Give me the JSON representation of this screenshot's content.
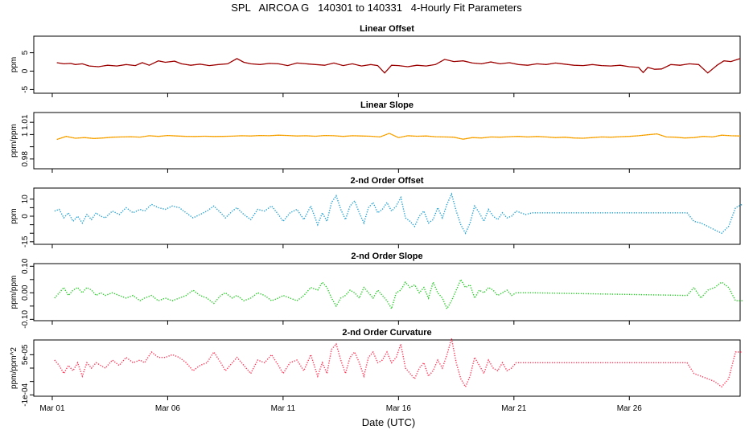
{
  "figure": {
    "title": "SPL   AIRCOA G   140301 to 140331   4-Hourly Fit Parameters",
    "xlabel": "Date (UTC)"
  },
  "chart_data": [
    {
      "type": "line",
      "title": "Linear Offset",
      "ylabel": "ppm",
      "color": "#aa0000",
      "dotted": false,
      "ylim": [
        -6,
        9.5
      ],
      "yticks": [
        -5,
        0,
        5
      ],
      "ytick_labels": [
        "-5",
        "0",
        "5"
      ],
      "x_days": [
        0.2,
        0.5,
        0.8,
        1.0,
        1.3,
        1.6,
        2.0,
        2.4,
        2.8,
        3.2,
        3.6,
        3.9,
        4.2,
        4.6,
        4.9,
        5.3,
        5.6,
        6.0,
        6.4,
        6.8,
        7.2,
        7.6,
        8.0,
        8.3,
        8.6,
        9.0,
        9.4,
        9.8,
        10.2,
        10.6,
        11.0,
        11.4,
        11.8,
        12.2,
        12.6,
        13.0,
        13.4,
        13.8,
        14.1,
        14.4,
        14.7,
        15.0,
        15.4,
        15.8,
        16.2,
        16.6,
        17.0,
        17.4,
        17.8,
        18.2,
        18.6,
        19.0,
        19.4,
        19.8,
        20.2,
        20.6,
        21.0,
        21.4,
        21.8,
        22.2,
        22.6,
        23.0,
        23.4,
        23.8,
        24.2,
        24.6,
        25.0,
        25.4,
        25.6,
        25.8,
        26.1,
        26.4,
        26.8,
        27.2,
        27.6,
        28.0,
        28.4,
        28.8,
        29.1,
        29.4,
        29.8
      ],
      "values": [
        2.3,
        2.0,
        2.1,
        1.8,
        2.0,
        1.4,
        1.2,
        1.6,
        1.4,
        1.8,
        1.5,
        2.3,
        1.6,
        2.8,
        2.4,
        2.7,
        2.0,
        1.6,
        1.9,
        1.5,
        1.8,
        2.0,
        3.4,
        2.4,
        2.0,
        1.8,
        2.1,
        2.0,
        1.5,
        2.2,
        2.0,
        1.8,
        1.6,
        2.2,
        1.5,
        2.0,
        1.4,
        1.8,
        1.5,
        -0.5,
        1.6,
        1.5,
        1.2,
        1.6,
        1.4,
        1.8,
        3.2,
        2.6,
        2.8,
        2.2,
        2.0,
        2.5,
        2.0,
        2.3,
        1.8,
        1.6,
        2.0,
        1.8,
        2.2,
        1.9,
        1.6,
        1.5,
        1.8,
        1.5,
        1.4,
        1.6,
        1.2,
        1.0,
        -0.4,
        1.0,
        0.5,
        0.6,
        1.8,
        1.6,
        2.0,
        1.8,
        -0.5,
        1.6,
        2.8,
        2.6,
        3.4
      ]
    },
    {
      "type": "line",
      "title": "Linear Slope",
      "ylabel": "ppm/ppm",
      "color": "#ffaa00",
      "dotted": false,
      "ylim": [
        0.972,
        1.018
      ],
      "yticks": [
        0.98,
        0.99,
        1.0,
        1.01
      ],
      "ytick_labels": [
        "0.98",
        "",
        "1",
        "1.01"
      ],
      "x_days": [
        0.2,
        0.6,
        1.0,
        1.4,
        1.8,
        2.2,
        2.6,
        3.0,
        3.4,
        3.8,
        4.2,
        4.6,
        5.0,
        5.4,
        5.8,
        6.2,
        6.6,
        7.0,
        7.4,
        7.8,
        8.2,
        8.6,
        9.0,
        9.4,
        9.8,
        10.2,
        10.6,
        11.0,
        11.4,
        11.8,
        12.2,
        12.6,
        13.0,
        13.4,
        13.8,
        14.2,
        14.6,
        15.0,
        15.4,
        15.8,
        16.2,
        16.6,
        17.0,
        17.4,
        17.8,
        18.2,
        18.6,
        19.0,
        19.4,
        19.8,
        20.2,
        20.6,
        21.0,
        21.4,
        21.8,
        22.2,
        22.6,
        23.0,
        23.4,
        23.8,
        24.2,
        24.6,
        25.0,
        25.4,
        25.8,
        26.2,
        26.6,
        27.0,
        27.4,
        27.8,
        28.2,
        28.6,
        29.0,
        29.4,
        29.8
      ],
      "values": [
        0.996,
        0.9985,
        0.997,
        0.9975,
        0.9968,
        0.9972,
        0.9978,
        0.998,
        0.9982,
        0.9979,
        0.999,
        0.9985,
        0.9992,
        0.9988,
        0.9985,
        0.9984,
        0.9986,
        0.9984,
        0.9985,
        0.9987,
        0.999,
        0.9988,
        0.9992,
        0.999,
        0.9995,
        0.9992,
        0.9988,
        0.999,
        0.9986,
        0.9992,
        0.999,
        0.9985,
        0.999,
        0.9988,
        0.9986,
        0.998,
        1.001,
        0.9975,
        0.999,
        0.9986,
        0.9988,
        0.9982,
        0.998,
        0.9978,
        0.9962,
        0.9975,
        0.9972,
        0.998,
        0.9978,
        0.9982,
        0.9985,
        0.998,
        0.9984,
        0.998,
        0.9975,
        0.9978,
        0.9972,
        0.997,
        0.9975,
        0.998,
        0.9978,
        0.9982,
        0.9985,
        0.999,
        0.9998,
        1.0005,
        0.998,
        0.9978,
        0.9972,
        0.9975,
        0.9985,
        0.998,
        0.9995,
        0.999,
        0.9988
      ]
    },
    {
      "type": "line",
      "title": "2-nd Order Offset",
      "ylabel": "ppm",
      "color": "#1e9fd2",
      "dotted": true,
      "ylim": [
        -16.5,
        16.5
      ],
      "yticks": [
        -15,
        -10,
        -5,
        0,
        5,
        10
      ],
      "ytick_labels": [
        "-15",
        "",
        "",
        "0",
        "",
        "10"
      ],
      "x_days": [
        0.1,
        0.3,
        0.5,
        0.7,
        0.9,
        1.1,
        1.3,
        1.5,
        1.7,
        1.9,
        2.1,
        2.3,
        2.6,
        2.9,
        3.2,
        3.5,
        3.8,
        4.0,
        4.3,
        4.6,
        4.9,
        5.2,
        5.5,
        5.8,
        6.1,
        6.4,
        6.7,
        7.0,
        7.3,
        7.5,
        7.8,
        8.0,
        8.3,
        8.6,
        8.9,
        9.2,
        9.5,
        9.8,
        10.0,
        10.3,
        10.6,
        10.9,
        11.2,
        11.5,
        11.7,
        11.9,
        12.1,
        12.3,
        12.5,
        12.7,
        12.9,
        13.1,
        13.3,
        13.5,
        13.7,
        13.9,
        14.1,
        14.3,
        14.5,
        14.7,
        14.9,
        15.1,
        15.3,
        15.5,
        15.7,
        15.9,
        16.1,
        16.3,
        16.5,
        16.7,
        16.9,
        17.1,
        17.3,
        17.5,
        17.7,
        17.9,
        18.1,
        18.3,
        18.5,
        18.7,
        18.9,
        19.1,
        19.3,
        19.5,
        19.7,
        19.9,
        20.1,
        20.3,
        20.5,
        20.8,
        27.5,
        27.8,
        28.1,
        28.4,
        28.7,
        29.0,
        29.3,
        29.6,
        29.9
      ],
      "values": [
        3,
        4,
        -1,
        2,
        -3,
        0,
        -4,
        1,
        -2,
        2,
        0,
        -1,
        3,
        1,
        5,
        2,
        4,
        3,
        7,
        5,
        4,
        6,
        5,
        2,
        -1,
        1,
        3,
        6,
        2,
        -1,
        3,
        5,
        1,
        -2,
        4,
        3,
        6,
        1,
        -3,
        2,
        4,
        -2,
        6,
        -5,
        2,
        -3,
        8,
        12,
        4,
        -2,
        6,
        9,
        2,
        -4,
        5,
        8,
        2,
        4,
        8,
        3,
        6,
        11,
        -1,
        -3,
        -6,
        0,
        3,
        -4,
        -2,
        5,
        -1,
        7,
        13,
        3,
        -5,
        -10,
        -4,
        6,
        2,
        -3,
        4,
        0,
        -2,
        2,
        -1,
        0,
        3,
        2,
        1,
        2,
        2,
        -3,
        -4,
        -6,
        -8,
        -10,
        -6,
        5,
        7
      ]
    },
    {
      "type": "line",
      "title": "2-nd Order Slope",
      "ylabel": "ppm/ppm",
      "color": "#22cc22",
      "dotted": true,
      "ylim": [
        -0.105,
        0.11
      ],
      "yticks": [
        -0.1,
        -0.05,
        0.0,
        0.05,
        0.1
      ],
      "ytick_labels": [
        "-0.10",
        "",
        "0.00",
        "",
        "0.10"
      ],
      "x_days": [
        0.1,
        0.3,
        0.5,
        0.7,
        0.9,
        1.1,
        1.3,
        1.5,
        1.7,
        1.9,
        2.1,
        2.3,
        2.6,
        2.9,
        3.2,
        3.5,
        3.8,
        4.0,
        4.3,
        4.6,
        4.9,
        5.2,
        5.5,
        5.8,
        6.1,
        6.4,
        6.7,
        7.0,
        7.3,
        7.5,
        7.8,
        8.0,
        8.3,
        8.6,
        8.9,
        9.2,
        9.5,
        9.8,
        10.0,
        10.3,
        10.6,
        10.9,
        11.2,
        11.5,
        11.7,
        11.9,
        12.1,
        12.3,
        12.5,
        12.7,
        12.9,
        13.1,
        13.3,
        13.5,
        13.7,
        13.9,
        14.1,
        14.3,
        14.5,
        14.7,
        14.9,
        15.1,
        15.3,
        15.5,
        15.7,
        15.9,
        16.1,
        16.3,
        16.5,
        16.7,
        16.9,
        17.1,
        17.3,
        17.5,
        17.7,
        17.9,
        18.1,
        18.3,
        18.5,
        18.7,
        18.9,
        19.1,
        19.3,
        19.5,
        19.7,
        19.9,
        20.1,
        20.3,
        20.5,
        20.8,
        27.5,
        27.8,
        28.1,
        28.4,
        28.7,
        29.0,
        29.3,
        29.6,
        29.9
      ],
      "values": [
        -0.02,
        0.0,
        0.02,
        -0.01,
        0.01,
        0.02,
        0.0,
        0.02,
        0.01,
        -0.01,
        0.0,
        -0.01,
        0.0,
        -0.01,
        -0.02,
        -0.01,
        -0.03,
        -0.02,
        -0.01,
        -0.03,
        -0.02,
        -0.03,
        -0.02,
        -0.01,
        0.01,
        -0.01,
        -0.02,
        -0.04,
        -0.01,
        0.0,
        -0.02,
        -0.01,
        -0.03,
        -0.02,
        0.0,
        -0.01,
        -0.03,
        -0.02,
        -0.01,
        -0.02,
        -0.03,
        -0.01,
        0.02,
        0.01,
        0.04,
        0.02,
        -0.02,
        -0.05,
        -0.02,
        -0.01,
        0.01,
        0.0,
        -0.02,
        0.02,
        0.0,
        -0.02,
        0.01,
        -0.01,
        -0.03,
        -0.06,
        0.0,
        0.01,
        0.04,
        0.02,
        0.03,
        0.0,
        0.02,
        -0.02,
        0.04,
        0.0,
        -0.02,
        -0.06,
        -0.03,
        0.01,
        0.05,
        0.02,
        0.03,
        -0.02,
        0.01,
        0.0,
        0.02,
        0.01,
        -0.01,
        0.0,
        0.01,
        -0.01,
        0.0,
        0.0,
        0.0,
        0.0,
        -0.01,
        0.02,
        -0.02,
        0.01,
        0.02,
        0.04,
        0.02,
        -0.03,
        -0.03
      ]
    },
    {
      "type": "line",
      "title": "2-nd Order Curvature",
      "ylabel": "ppm/ppm^2",
      "color": "#ff3355",
      "dotted": true,
      "ylim": [
        -0.000105,
        0.000105
      ],
      "yticks": [
        -0.0001,
        -5e-05,
        0,
        5e-05
      ],
      "ytick_labels": [
        "-1e-04",
        "",
        "",
        "5e-05"
      ],
      "x_days": [
        0.1,
        0.3,
        0.5,
        0.7,
        0.9,
        1.1,
        1.3,
        1.5,
        1.7,
        1.9,
        2.1,
        2.3,
        2.6,
        2.9,
        3.2,
        3.5,
        3.8,
        4.0,
        4.3,
        4.6,
        4.9,
        5.2,
        5.5,
        5.8,
        6.1,
        6.4,
        6.7,
        7.0,
        7.3,
        7.5,
        7.8,
        8.0,
        8.3,
        8.6,
        8.9,
        9.2,
        9.5,
        9.8,
        10.0,
        10.3,
        10.6,
        10.9,
        11.2,
        11.5,
        11.7,
        11.9,
        12.1,
        12.3,
        12.5,
        12.7,
        12.9,
        13.1,
        13.3,
        13.5,
        13.7,
        13.9,
        14.1,
        14.3,
        14.5,
        14.7,
        14.9,
        15.1,
        15.3,
        15.5,
        15.7,
        15.9,
        16.1,
        16.3,
        16.5,
        16.7,
        16.9,
        17.1,
        17.3,
        17.5,
        17.7,
        17.9,
        18.1,
        18.3,
        18.5,
        18.7,
        18.9,
        19.1,
        19.3,
        19.5,
        19.7,
        19.9,
        20.1,
        20.3,
        20.5,
        20.8,
        27.5,
        27.8,
        28.1,
        28.4,
        28.7,
        29.0,
        29.3,
        29.6,
        29.9
      ],
      "values": [
        3e-05,
        1e-05,
        -2e-05,
        1e-05,
        -1e-05,
        2e-05,
        -3e-05,
        2e-05,
        0.0,
        2e-05,
        1e-05,
        0.0,
        3e-05,
        1e-05,
        4e-05,
        2e-05,
        3e-05,
        2e-05,
        6e-05,
        4e-05,
        4e-05,
        5e-05,
        4e-05,
        2e-05,
        -1e-05,
        1e-05,
        2e-05,
        6e-05,
        2e-05,
        -1e-05,
        2e-05,
        4e-05,
        1e-05,
        -2e-05,
        3e-05,
        2e-05,
        5e-05,
        1e-05,
        -2e-05,
        2e-05,
        3e-05,
        -1e-05,
        5e-05,
        -3e-05,
        2e-05,
        -2e-05,
        7e-05,
        9e-05,
        3e-05,
        -2e-05,
        4e-05,
        6e-05,
        2e-05,
        -3e-05,
        4e-05,
        6e-05,
        2e-05,
        3e-05,
        6e-05,
        2e-05,
        4e-05,
        9e-05,
        0.0,
        -2e-05,
        -4e-05,
        0.0,
        2e-05,
        -3e-05,
        -1e-05,
        3e-05,
        0.0,
        5e-05,
        0.00011,
        2e-05,
        -4e-05,
        -7e-05,
        -3e-05,
        4e-05,
        1e-05,
        -2e-05,
        3e-05,
        0.0,
        -1e-05,
        2e-05,
        -1e-05,
        0.0,
        2e-05,
        2e-05,
        2e-05,
        2e-05,
        2e-05,
        -2e-05,
        -3e-05,
        -4e-05,
        -5e-05,
        -7e-05,
        -4e-05,
        6e-05,
        6e-05
      ]
    }
  ],
  "x_axis": {
    "day_range": [
      -0.8,
      29.8
    ],
    "tick_days": [
      0,
      5,
      10,
      15,
      20,
      25
    ],
    "tick_labels": [
      "Mar 01",
      "Mar 06",
      "Mar 11",
      "Mar 16",
      "Mar 21",
      "Mar 26"
    ]
  }
}
